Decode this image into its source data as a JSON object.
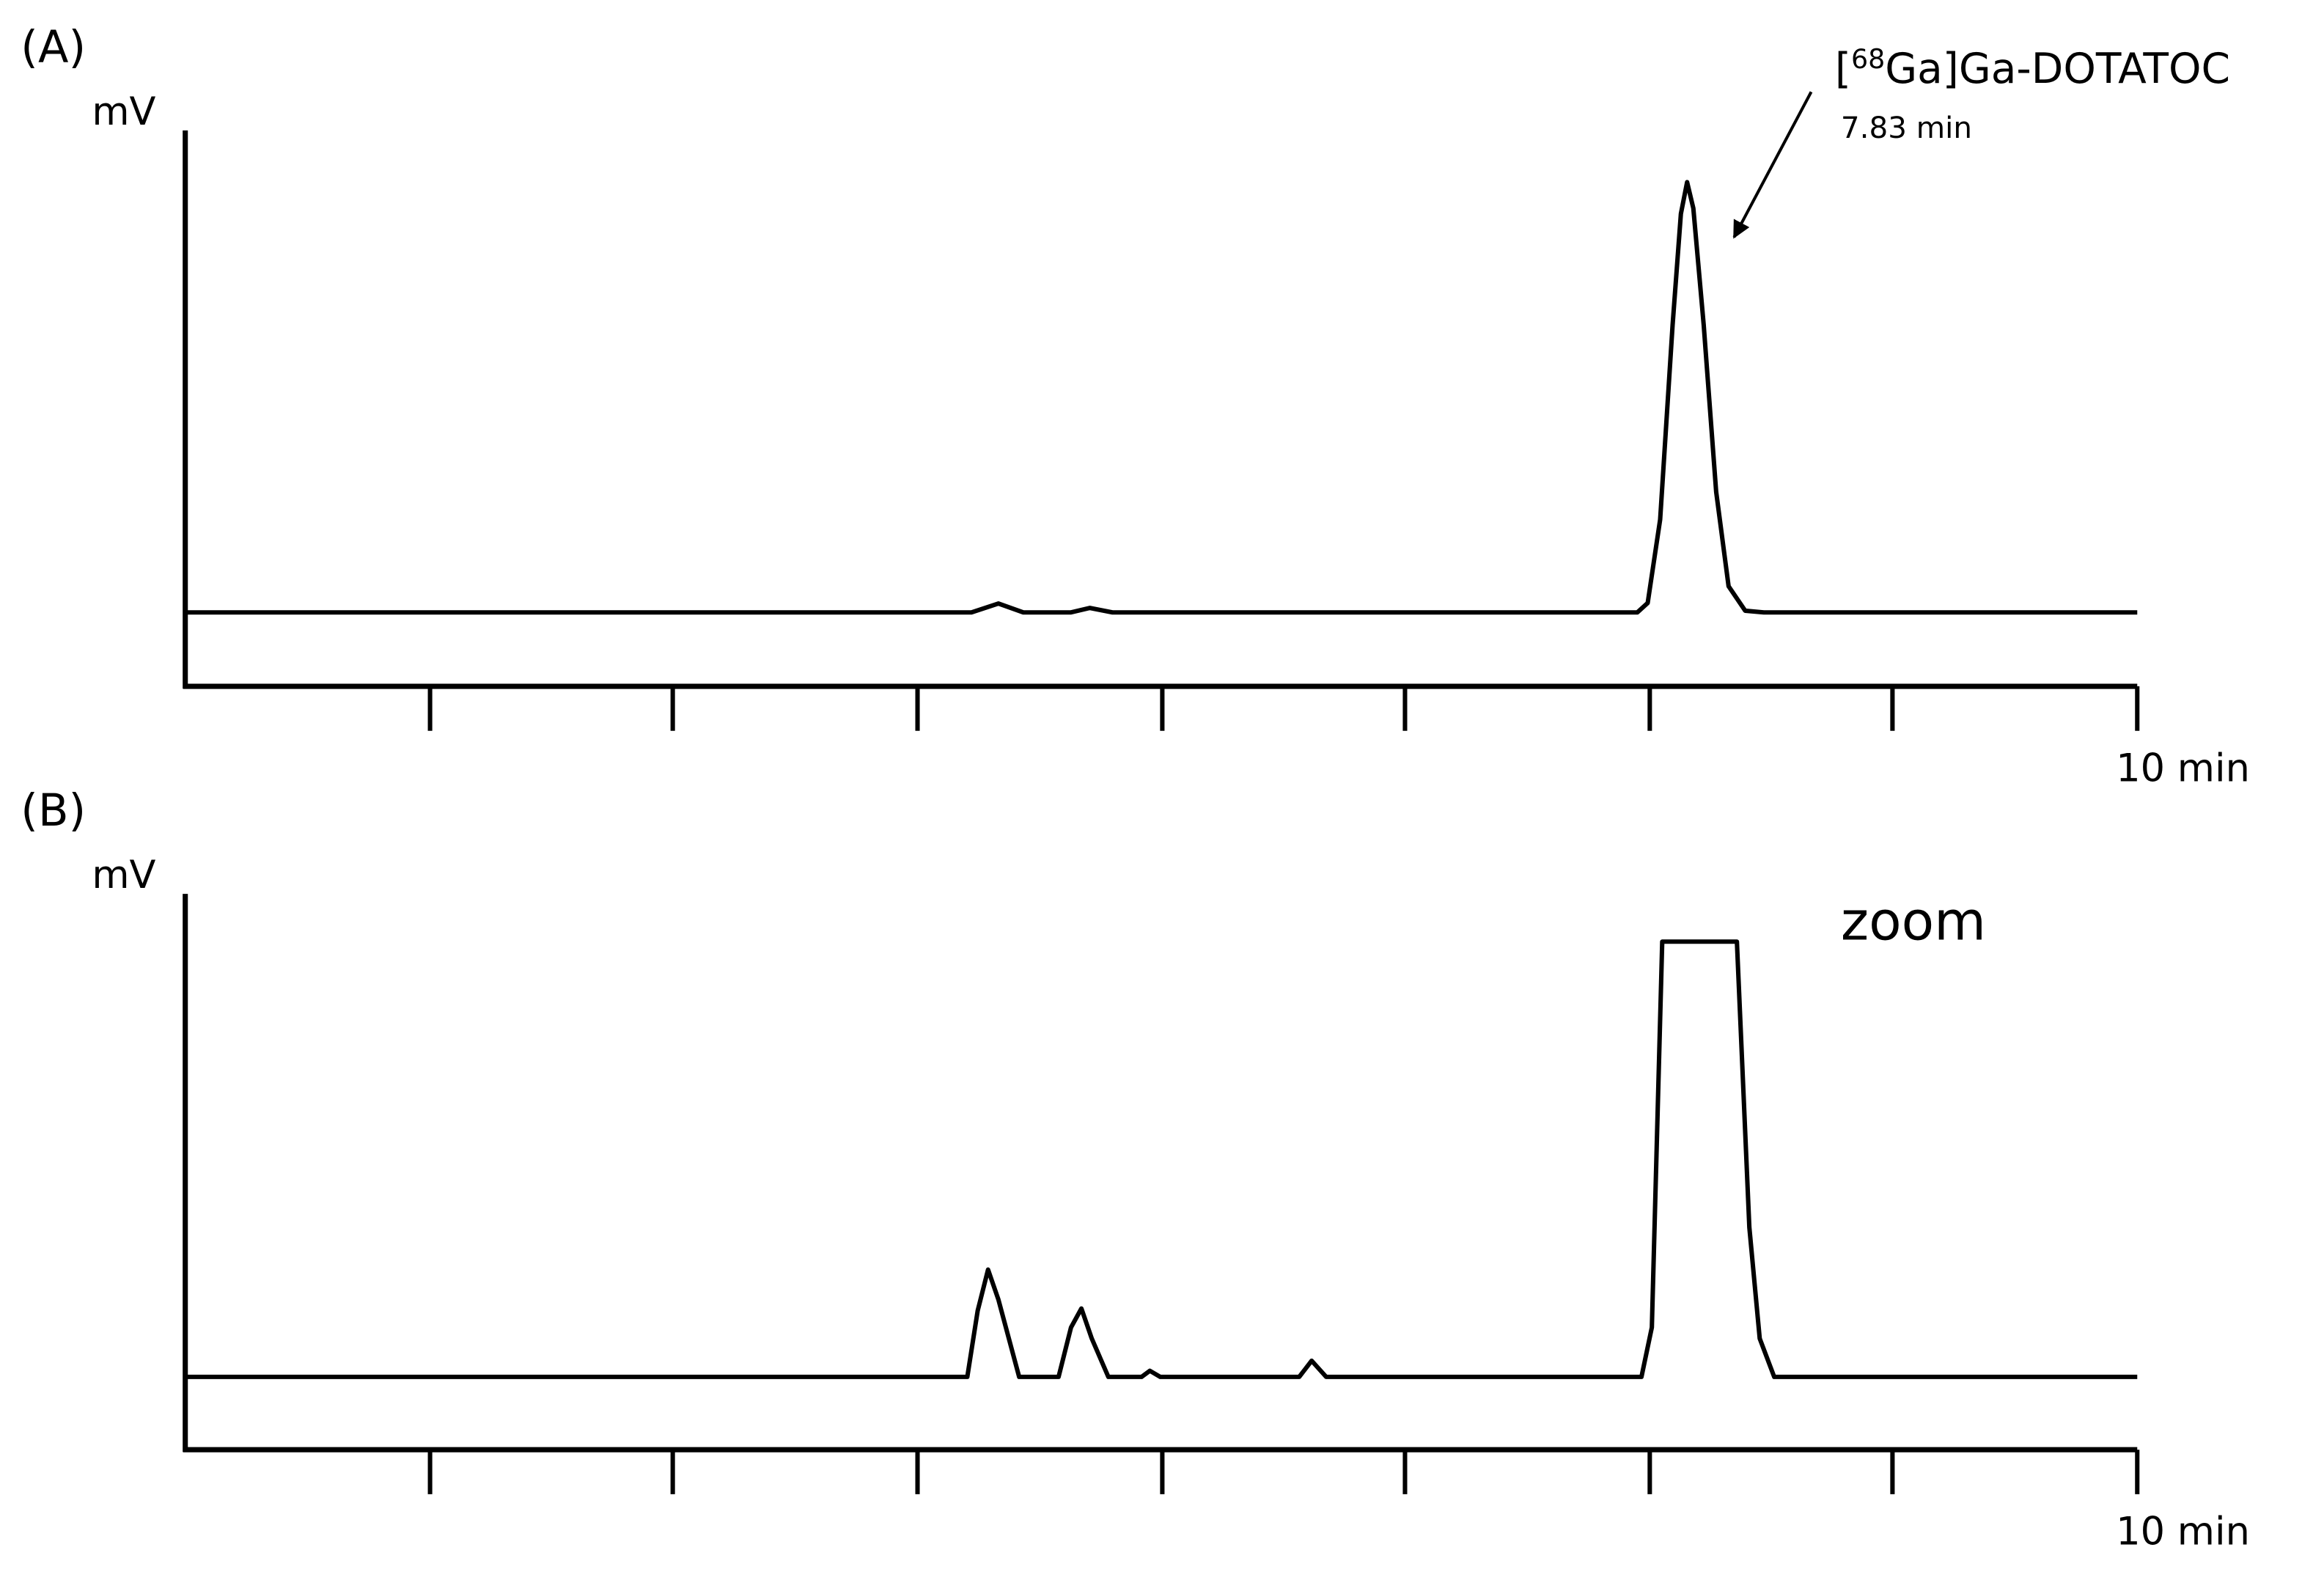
{
  "chart_data": [
    {
      "type": "line",
      "panel": "(A)",
      "ylabel": "mV",
      "color": "#000000",
      "xlim": [
        0.59,
        10
      ],
      "ylim": [
        0,
        100
      ],
      "xticks": [
        1.77,
        2.94,
        4.12,
        5.3,
        6.47,
        7.65,
        8.82,
        {
          "value": 10,
          "label": "10 min"
        }
      ],
      "x": [
        0.59,
        4.38,
        4.51,
        4.63,
        4.86,
        4.95,
        5.06,
        7.59,
        7.64,
        7.7,
        7.76,
        7.8,
        7.83,
        7.86,
        7.91,
        7.97,
        8.03,
        8.11,
        8.2,
        10
      ],
      "values": [
        13.3,
        13.3,
        14.9,
        13.3,
        13.3,
        14.1,
        13.3,
        13.3,
        15,
        30,
        65,
        85,
        90.7,
        86,
        65,
        35,
        18,
        13.6,
        13.3,
        13.3
      ],
      "annotation": {
        "before": "[",
        "sup": "68",
        "after": "Ga]Ga-DOTATOC",
        "time": "7.83 min"
      }
    },
    {
      "type": "line",
      "panel": "(B)",
      "ylabel": "mV",
      "color": "#000000",
      "xlim": [
        0.59,
        10
      ],
      "ylim": [
        0,
        100
      ],
      "xticks": [
        1.77,
        2.94,
        4.12,
        5.3,
        6.47,
        7.65,
        8.82,
        {
          "value": 10,
          "label": "10 min"
        }
      ],
      "x": [
        0.59,
        4.36,
        4.41,
        4.46,
        4.51,
        4.61,
        4.8,
        4.86,
        4.91,
        4.96,
        5.04,
        5.2,
        5.24,
        5.29,
        5.96,
        6.02,
        6.09,
        7.61,
        7.66,
        7.71,
        8.07,
        8.13,
        8.18,
        8.25,
        10
      ],
      "values": [
        13.1,
        13.1,
        25,
        32.4,
        27,
        13.1,
        13.1,
        22,
        25.4,
        20,
        13.1,
        13.1,
        14.2,
        13.1,
        13.1,
        16,
        13.1,
        13.1,
        22,
        91.4,
        91.4,
        40,
        20,
        13.1,
        13.1
      ],
      "note": "zoom"
    }
  ]
}
